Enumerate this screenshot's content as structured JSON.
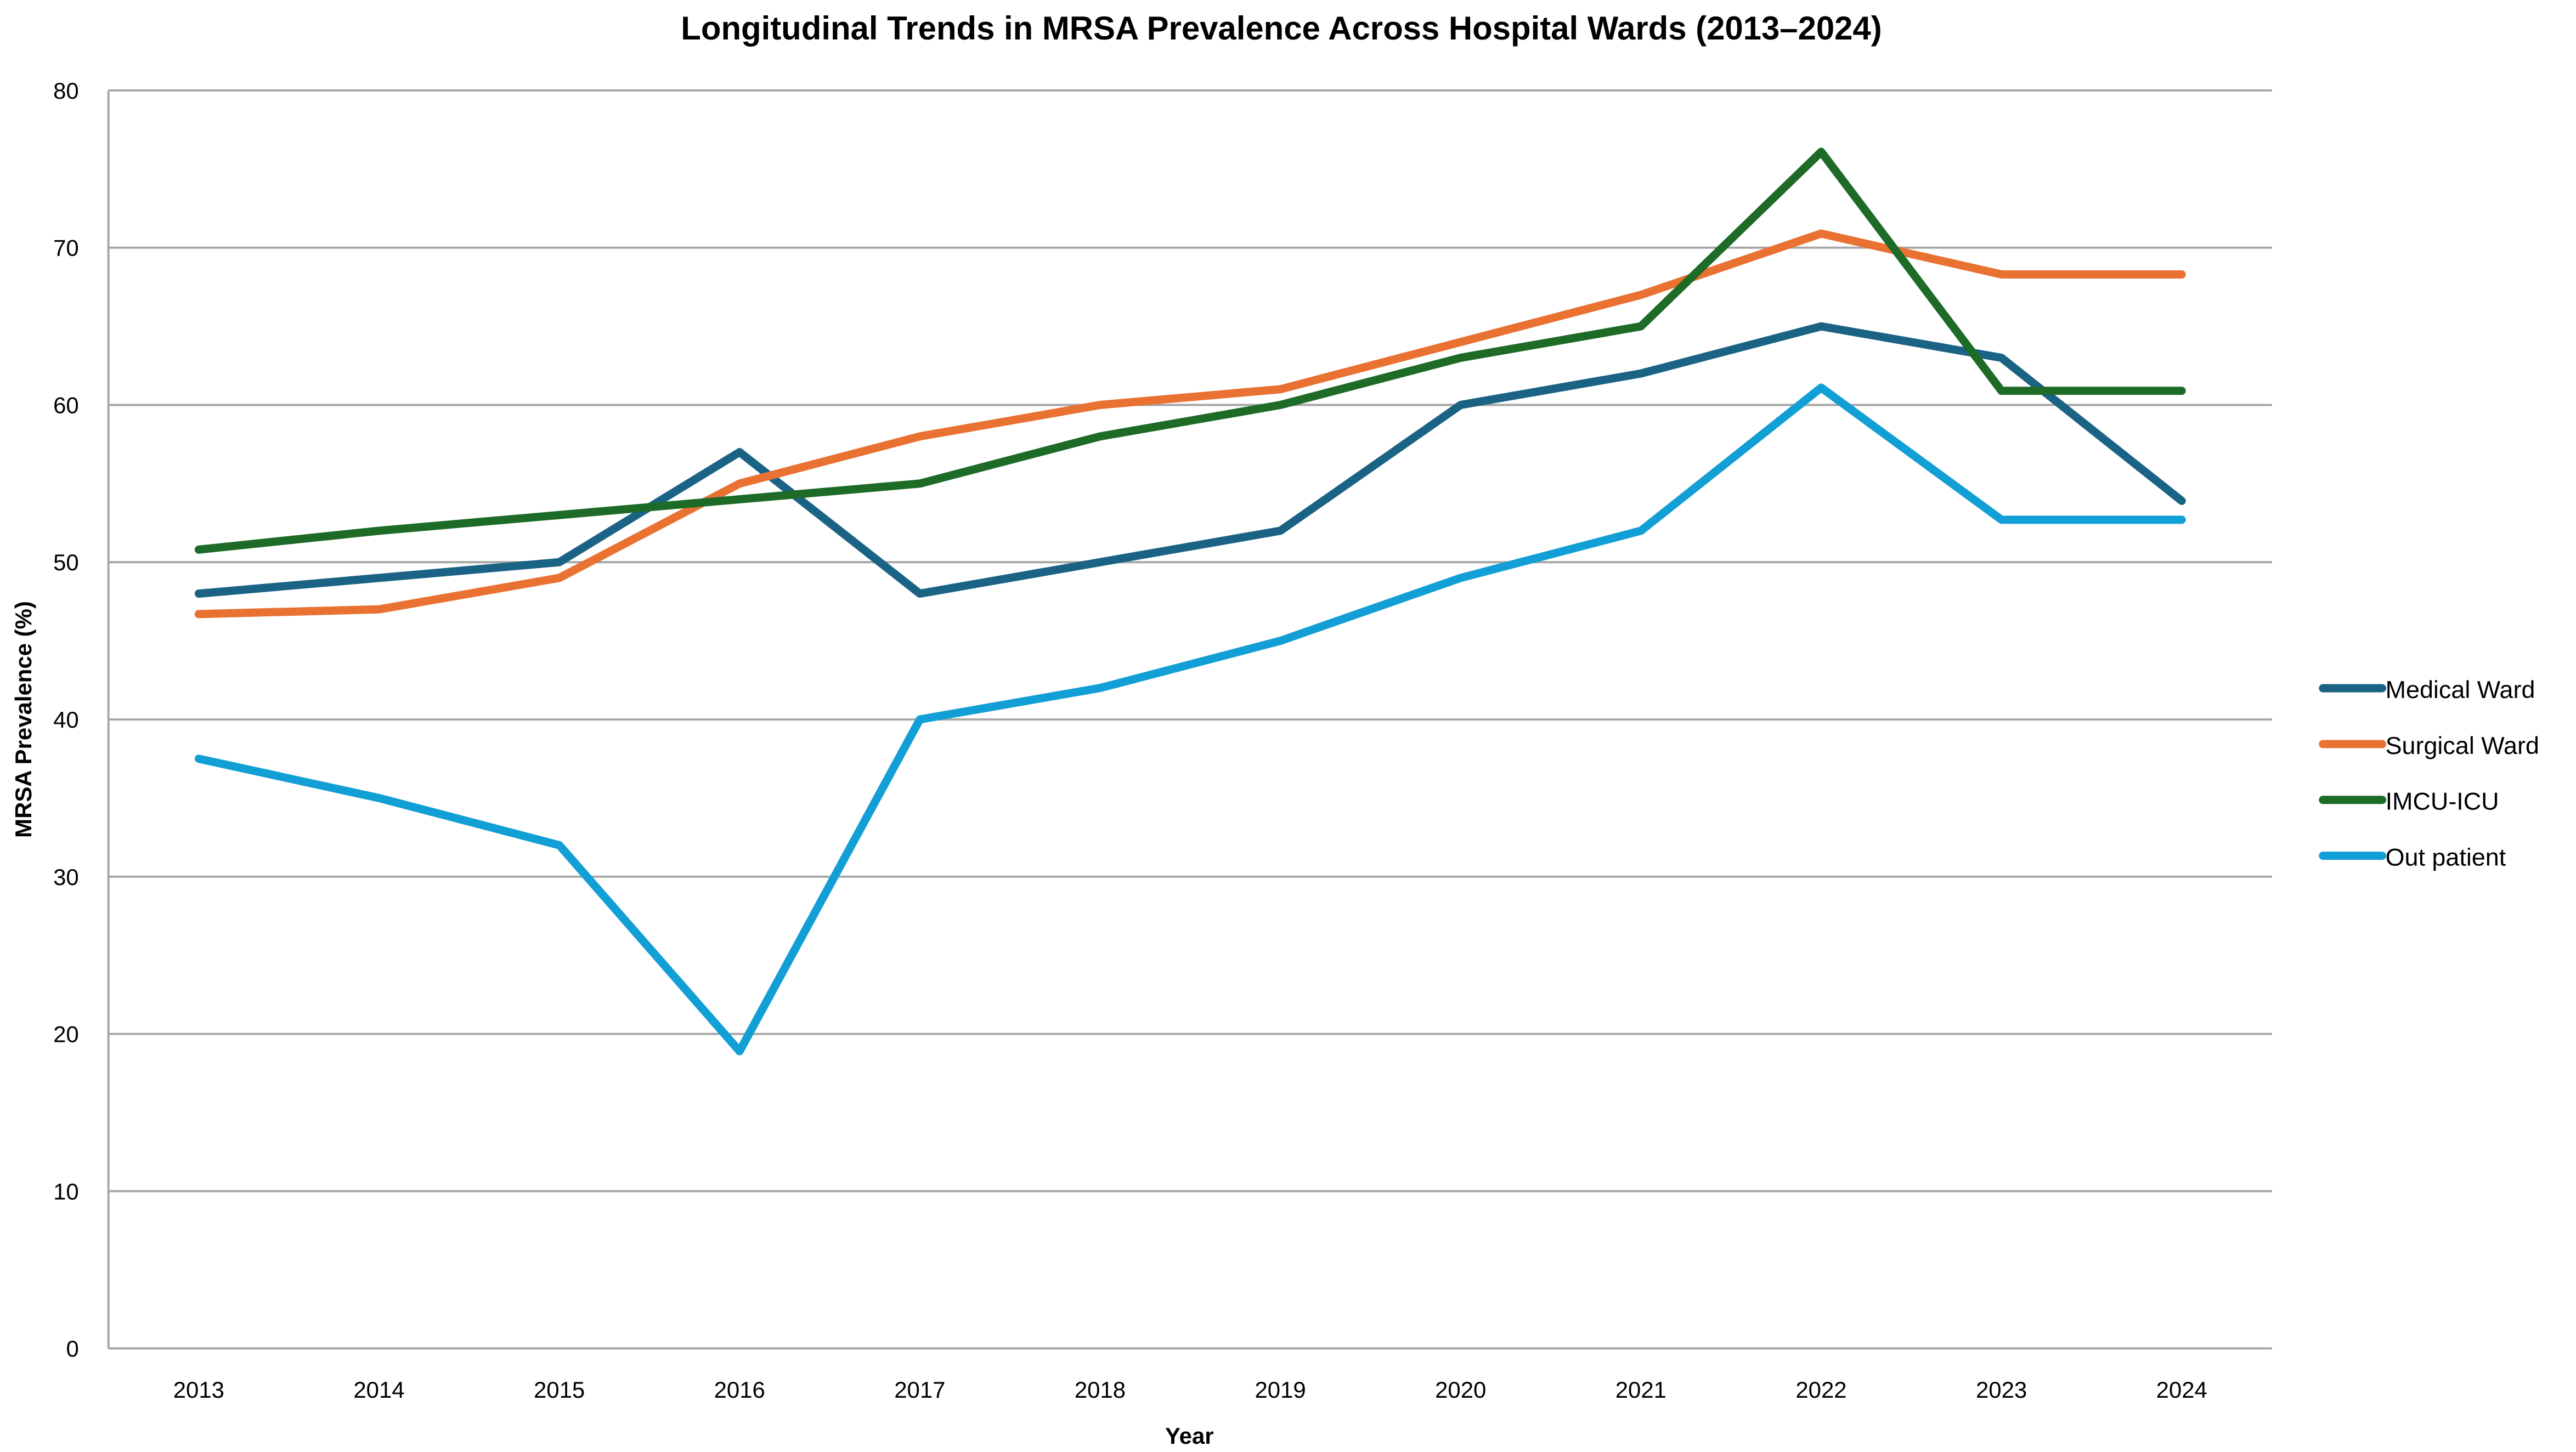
{
  "chart_data": {
    "type": "line",
    "title": "Longitudinal Trends in MRSA Prevalence Across Hospital Wards (2013–2024)",
    "xlabel": "Year",
    "ylabel": "MRSA Prevalence (%)",
    "ylim": [
      0,
      80
    ],
    "yticks": [
      0,
      10,
      20,
      30,
      40,
      50,
      60,
      70,
      80
    ],
    "grid": true,
    "legend_position": "right",
    "x": [
      "2013",
      "2014",
      "2015",
      "2016",
      "2017",
      "2018",
      "2019",
      "2020",
      "2021",
      "2022",
      "2023",
      "2024"
    ],
    "series": [
      {
        "name": "Medical Ward",
        "color": "#1a6385",
        "values": [
          48,
          49,
          50,
          57,
          48,
          50,
          52,
          60,
          62,
          65,
          63,
          53.9
        ]
      },
      {
        "name": "Surgical Ward",
        "color": "#e97132",
        "values": [
          46.7,
          47,
          49,
          55,
          58,
          60,
          61,
          64,
          67,
          70.9,
          68.3,
          68.3
        ]
      },
      {
        "name": "IMCU-ICU",
        "color": "#1d6b27",
        "values": [
          50.8,
          52,
          53,
          54,
          55,
          58,
          60,
          63,
          65,
          76.1,
          60.9,
          60.9
        ]
      },
      {
        "name": "Out patient",
        "color": "#129fd6",
        "values": [
          37.5,
          35,
          32,
          18.9,
          40,
          42,
          45,
          49,
          52,
          61.1,
          52.7,
          52.7
        ]
      }
    ]
  }
}
